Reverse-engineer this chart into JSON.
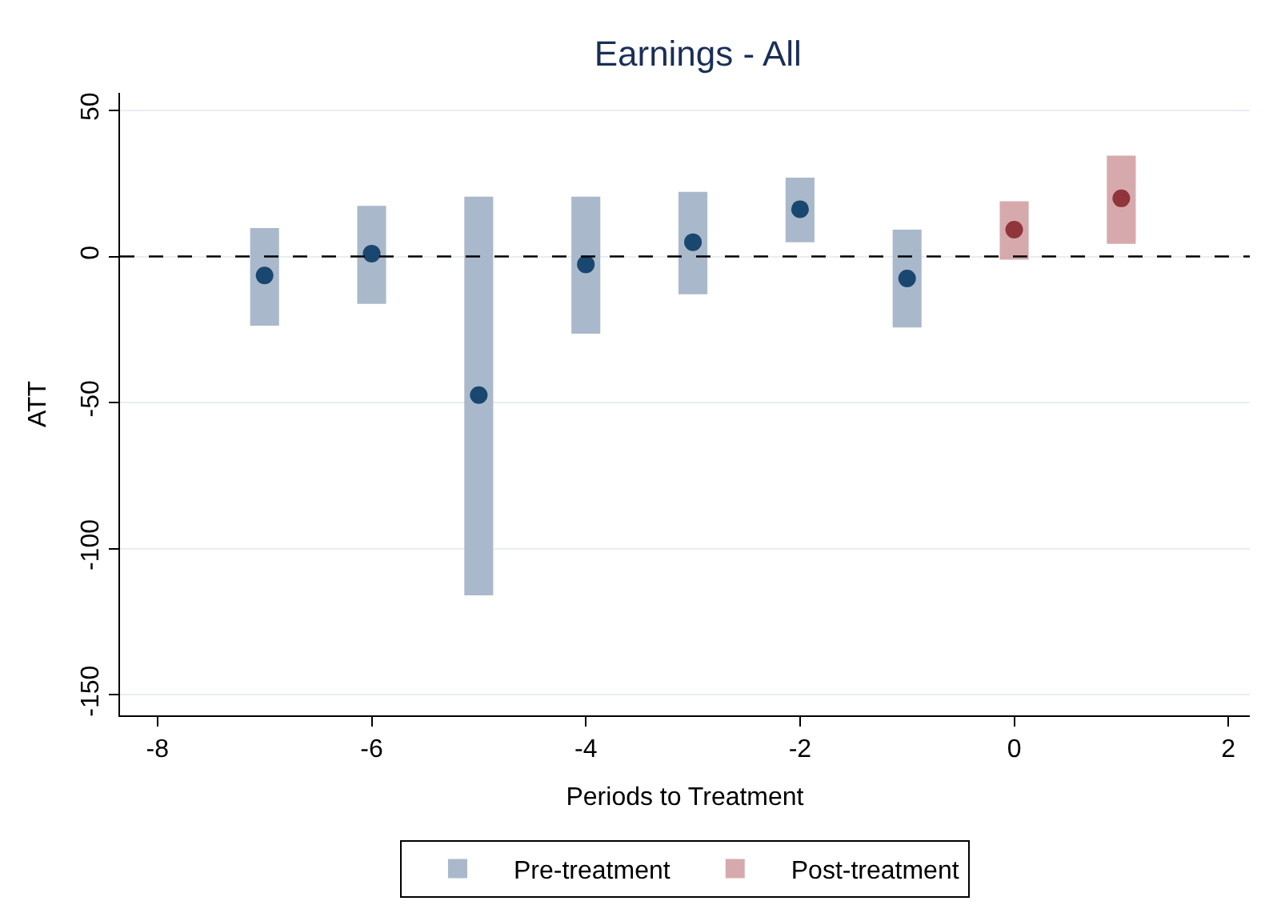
{
  "chart_data": {
    "type": "bar",
    "title": "Earnings - All",
    "xlabel": "Periods to Treatment",
    "ylabel": "ATT",
    "xlim": [
      -8.35,
      2.2
    ],
    "ylim": [
      -157,
      56
    ],
    "xticks": [
      -8,
      -6,
      -4,
      -2,
      0,
      2
    ],
    "yticks": [
      -150,
      -100,
      -50,
      0,
      50
    ],
    "grid": "y",
    "legend": "bottom",
    "tick_labels": true,
    "ref_lines": [
      {
        "axis": "y",
        "value": 0,
        "color": "#000000",
        "line_style": "dashed"
      }
    ],
    "series": [
      {
        "name": "Pre-treatment",
        "color": "#a9b9cb",
        "x": [
          -7,
          -6,
          -5,
          -4,
          -3,
          -2,
          -1
        ],
        "base": [
          -23.7,
          -16.2,
          -115.9,
          -26.4,
          -12.9,
          4.9,
          -24.3
        ],
        "values": [
          33.4,
          33.5,
          136.4,
          46.9,
          35.0,
          22.1,
          33.5
        ]
      },
      {
        "name": "Post-treatment",
        "color": "#d6aaad",
        "x": [
          0,
          1
        ],
        "base": [
          -1.1,
          4.3
        ],
        "values": [
          20.0,
          30.2
        ]
      },
      {
        "type": "scatter",
        "marker": "circle",
        "color": "#1a476f",
        "x": [
          -7,
          -6,
          -5,
          -4,
          -3,
          -2,
          -1
        ],
        "values": [
          -6.5,
          1.0,
          -47.4,
          -2.7,
          4.9,
          16.2,
          -7.5
        ]
      },
      {
        "type": "scatter",
        "marker": "circle",
        "color": "#90353b",
        "x": [
          0,
          1
        ],
        "values": [
          9.2,
          19.9
        ]
      }
    ]
  }
}
